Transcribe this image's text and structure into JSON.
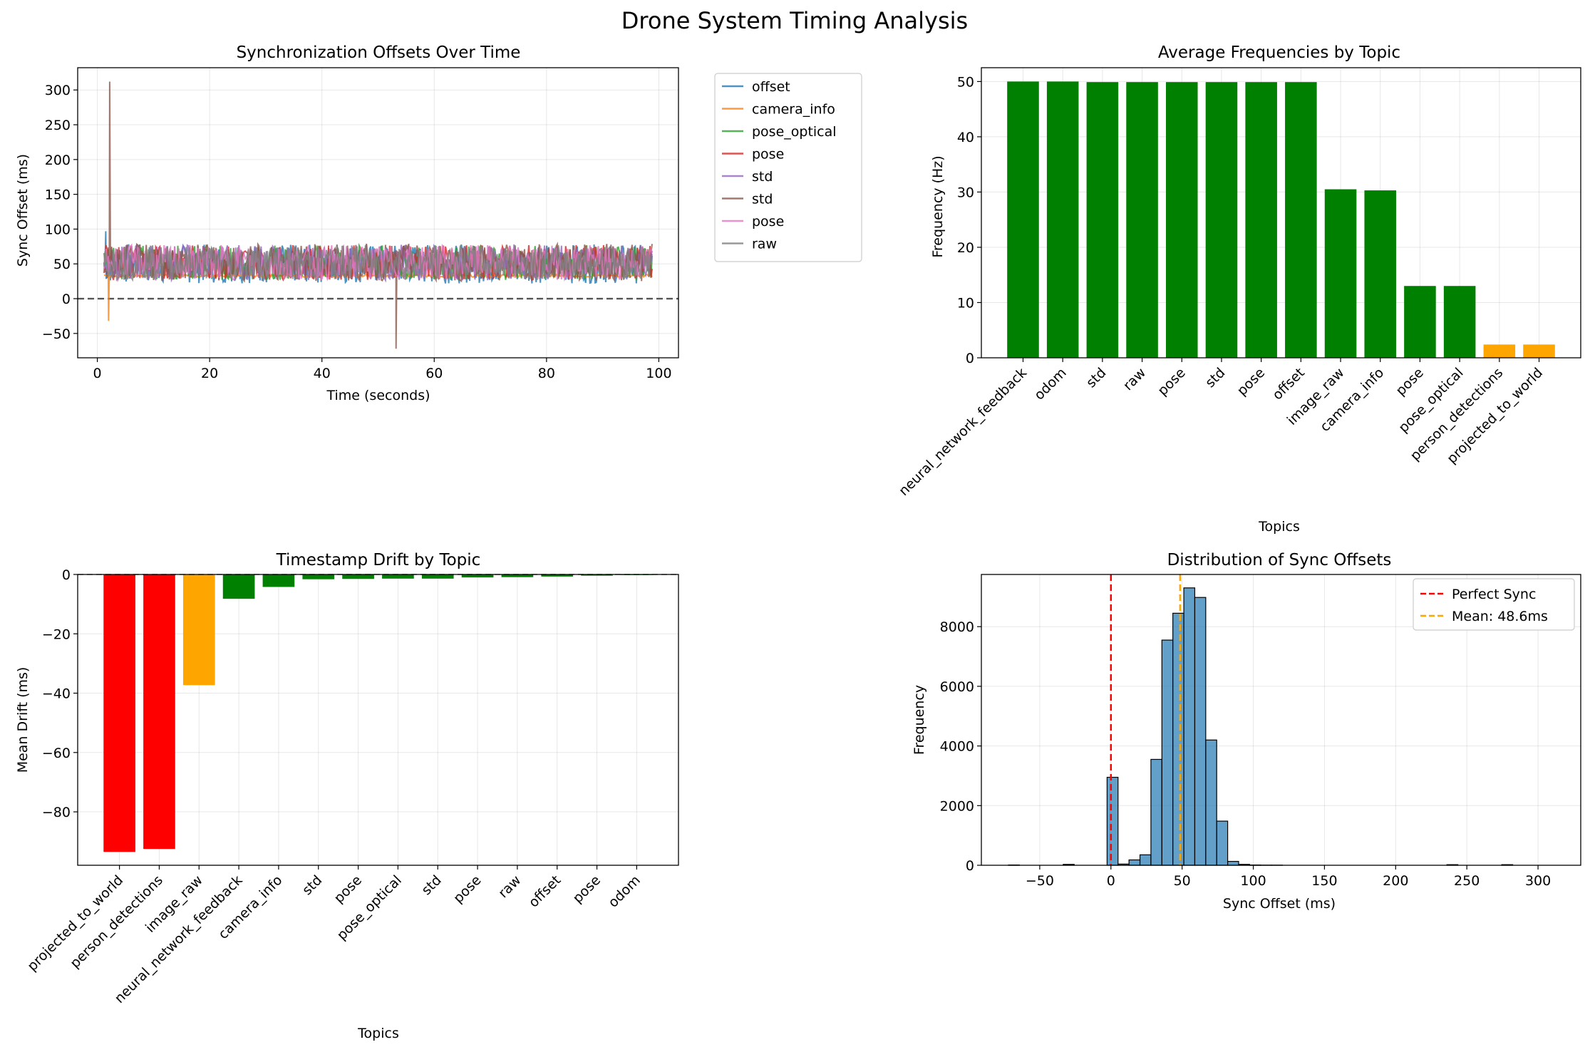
{
  "title": "Drone System Timing Analysis",
  "charts": [
    {
      "type": "line",
      "title": "Synchronization Offsets Over Time",
      "xlabel": "Time (seconds)",
      "ylabel": "Sync Offset (ms)",
      "xlim": [
        -3.5,
        103.5
      ],
      "ylim": [
        -85,
        332
      ],
      "xticks": [
        0,
        20,
        40,
        60,
        80,
        100
      ],
      "yticks": [
        -50,
        0,
        50,
        100,
        150,
        200,
        250,
        300
      ],
      "grid": true,
      "legend_placement": "outside upper right",
      "reference_line": {
        "y": 0,
        "style": "dashed",
        "color": "#555555"
      },
      "series": [
        {
          "name": "offset",
          "color": "#1f77b4",
          "base": 50,
          "amp": 28,
          "start": 1.2,
          "spikes": [
            [
              1.5,
              97
            ]
          ]
        },
        {
          "name": "camera_info",
          "color": "#ff7f0e",
          "base": 33,
          "amp": 2,
          "start": 1.2,
          "spikes": [
            [
              2.0,
              -32
            ]
          ]
        },
        {
          "name": "pose_optical",
          "color": "#2ca02c",
          "base": 52,
          "amp": 25,
          "start": 1.2,
          "spikes": []
        },
        {
          "name": "pose",
          "color": "#d62728",
          "base": 52,
          "amp": 25,
          "start": 1.2,
          "spikes": []
        },
        {
          "name": "std",
          "color": "#9467bd",
          "base": 52,
          "amp": 26,
          "start": 1.2,
          "spikes": []
        },
        {
          "name": "std",
          "color": "#8c564b",
          "base": 52,
          "amp": 27,
          "start": 1.2,
          "spikes": [
            [
              2.2,
              312
            ],
            [
              53.2,
              -72
            ]
          ]
        },
        {
          "name": "pose",
          "color": "#e377c2",
          "base": 52,
          "amp": 25,
          "start": 1.2,
          "spikes": []
        },
        {
          "name": "raw",
          "color": "#7f7f7f",
          "base": 52,
          "amp": 25,
          "start": 1.2,
          "spikes": []
        }
      ]
    },
    {
      "type": "bar",
      "title": "Average Frequencies by Topic",
      "xlabel": "Topics",
      "ylabel": "Frequency (Hz)",
      "ylim": [
        0,
        52.5
      ],
      "yticks": [
        0,
        10,
        20,
        30,
        40,
        50
      ],
      "grid": true,
      "categories": [
        "neural_network_feedback",
        "odom",
        "std",
        "raw",
        "pose",
        "std",
        "pose",
        "offset",
        "image_raw",
        "camera_info",
        "pose",
        "pose_optical",
        "person_detections",
        "projected_to_world"
      ],
      "values": [
        50.0,
        50.0,
        49.9,
        49.9,
        49.9,
        49.9,
        49.9,
        49.9,
        30.5,
        30.3,
        13.0,
        13.0,
        2.4,
        2.4
      ],
      "colors": [
        "#008000",
        "#008000",
        "#008000",
        "#008000",
        "#008000",
        "#008000",
        "#008000",
        "#008000",
        "#008000",
        "#008000",
        "#008000",
        "#008000",
        "#ffa500",
        "#ffa500"
      ]
    },
    {
      "type": "bar",
      "title": "Timestamp Drift by Topic",
      "xlabel": "Topics",
      "ylabel": "Mean Drift (ms)",
      "ylim": [
        -98,
        0
      ],
      "yticks": [
        -80,
        -60,
        -40,
        -20,
        0
      ],
      "grid": true,
      "reference_line": {
        "y": 0,
        "style": "dashed",
        "color": "#000000"
      },
      "categories": [
        "projected_to_world",
        "person_detections",
        "image_raw",
        "neural_network_feedback",
        "camera_info",
        "std",
        "pose",
        "pose_optical",
        "std",
        "pose",
        "raw",
        "offset",
        "pose",
        "odom"
      ],
      "values": [
        -93.5,
        -92.5,
        -37.3,
        -8.2,
        -4.2,
        -1.6,
        -1.5,
        -1.4,
        -1.4,
        -1.0,
        -0.9,
        -0.7,
        -0.4,
        -0.2
      ],
      "colors": [
        "#ff0000",
        "#ff0000",
        "#ffa500",
        "#008000",
        "#008000",
        "#008000",
        "#008000",
        "#008000",
        "#008000",
        "#008000",
        "#008000",
        "#008000",
        "#008000",
        "#008000"
      ]
    },
    {
      "type": "histogram",
      "title": "Distribution of Sync Offsets",
      "xlabel": "Sync Offset (ms)",
      "ylabel": "Frequency",
      "xlim": [
        -91,
        330
      ],
      "ylim": [
        0,
        9750
      ],
      "xticks": [
        -50,
        0,
        50,
        100,
        150,
        200,
        250,
        300
      ],
      "yticks": [
        0,
        2000,
        4000,
        6000,
        8000
      ],
      "grid": true,
      "bar_color": "#1f77b4",
      "bin_start": -72,
      "bin_width": 7.7,
      "counts": [
        10,
        0,
        0,
        0,
        0,
        30,
        0,
        0,
        0,
        2950,
        40,
        180,
        350,
        3550,
        7550,
        8450,
        9300,
        8980,
        4200,
        1480,
        130,
        30,
        10,
        5,
        5,
        0,
        0,
        0,
        0,
        0,
        0,
        0,
        0,
        0,
        0,
        0,
        0,
        0,
        0,
        0,
        20,
        0,
        0,
        0,
        0,
        20,
        0,
        0,
        0,
        0
      ],
      "legend": [
        {
          "label": "Perfect Sync",
          "color": "#ff0000",
          "x": 0
        },
        {
          "label": "Mean: 48.6ms",
          "color": "#ffa500",
          "x": 48.6
        }
      ],
      "legend_placement": "upper right"
    }
  ]
}
